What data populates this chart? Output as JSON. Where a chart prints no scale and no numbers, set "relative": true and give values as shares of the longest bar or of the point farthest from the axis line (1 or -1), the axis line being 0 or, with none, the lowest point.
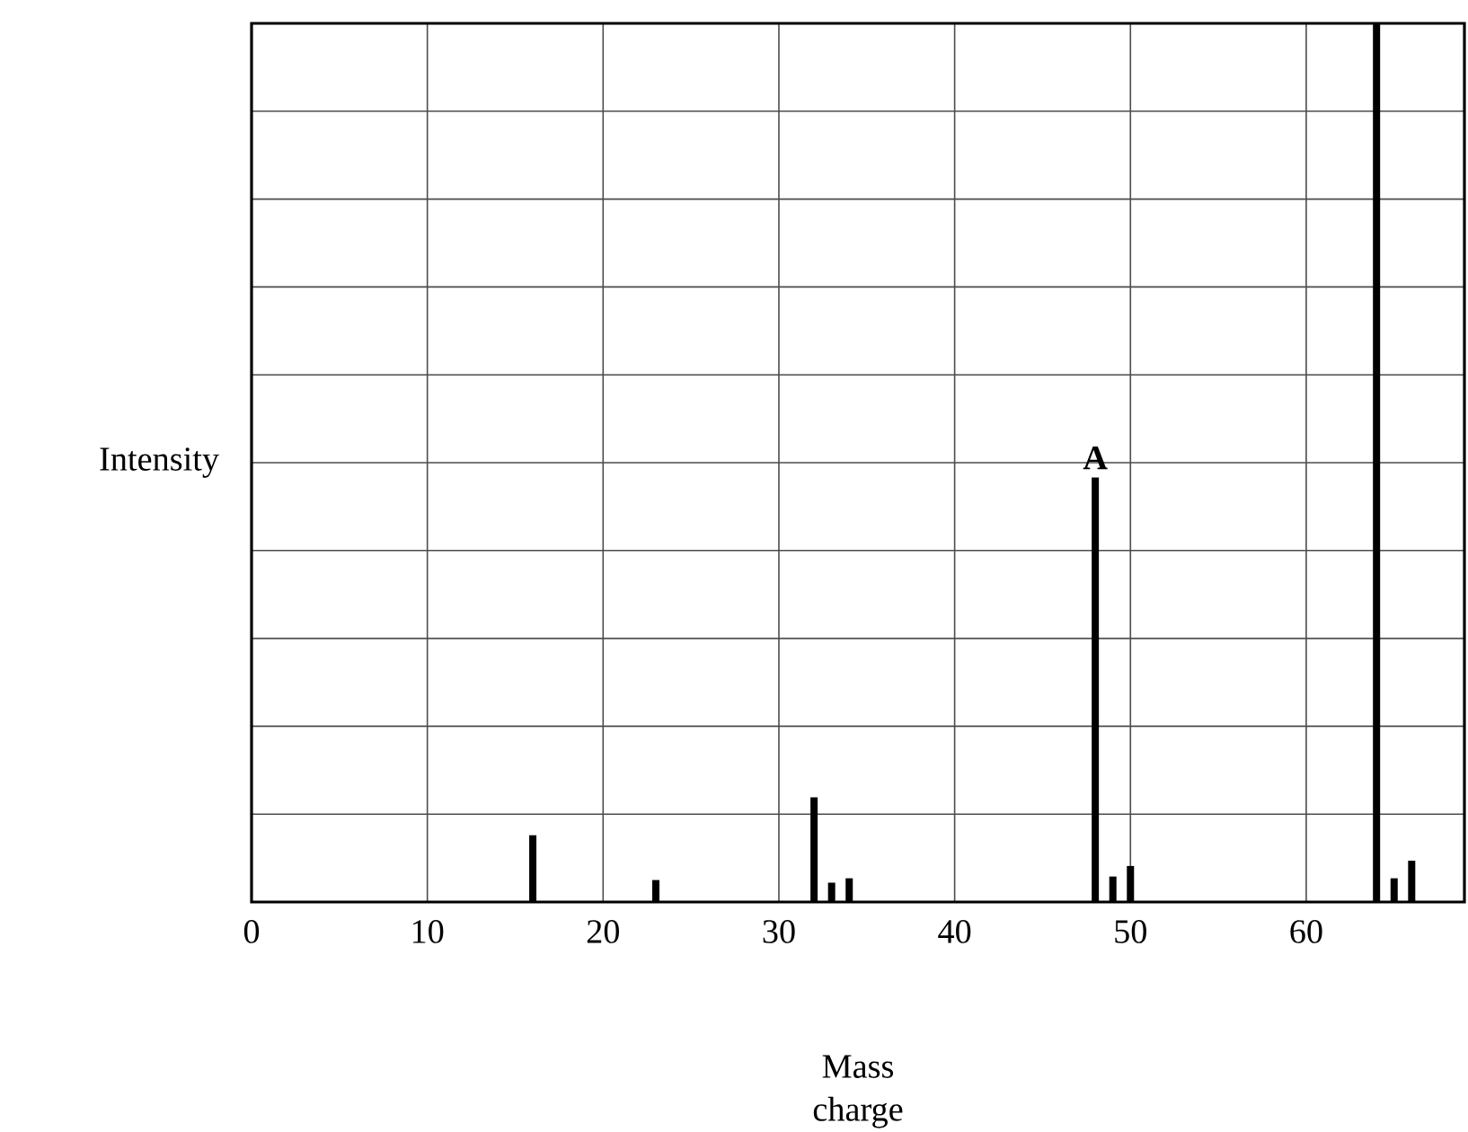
{
  "chart_data": {
    "type": "bar",
    "relative": true,
    "xlabel": "Mass charge",
    "ylabel": "Intensity",
    "x": [
      16,
      23,
      32,
      33,
      34,
      48,
      49,
      50,
      64,
      65,
      66
    ],
    "values": [
      0.076,
      0.025,
      0.119,
      0.022,
      0.027,
      0.483,
      0.029,
      0.041,
      1.0,
      0.027,
      0.047
    ],
    "color": "#000000",
    "xlim": [
      0,
      69
    ],
    "xticks": [
      0,
      10,
      20,
      30,
      40,
      50,
      60
    ],
    "grid": true,
    "annotations": [
      {
        "text": "A",
        "x": 48,
        "y": 0.483
      }
    ]
  }
}
